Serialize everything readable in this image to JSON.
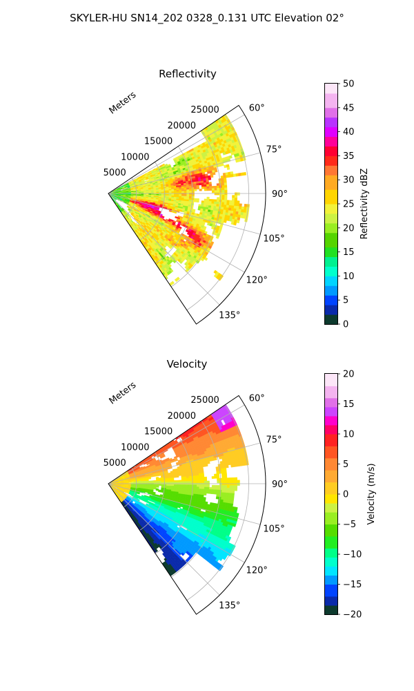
{
  "figure": {
    "title": "SKYLER-HU  SN14_202  0328_0.131 UTC Elevation 02°"
  },
  "chart_data": [
    {
      "type": "heatmap",
      "title": "Reflectivity",
      "projection": "polar-sector",
      "range_label": "Meters",
      "range_ticks": [
        "5000",
        "10000",
        "15000",
        "20000",
        "25000"
      ],
      "range_values": [
        5000,
        10000,
        15000,
        20000,
        25000
      ],
      "rmax": 28000,
      "azimuth_ticks": [
        "60°",
        "75°",
        "90°",
        "105°",
        "120°",
        "135°"
      ],
      "azimuth_values": [
        60,
        75,
        90,
        105,
        120,
        135
      ],
      "theta_range": [
        56,
        146
      ],
      "grid": true,
      "colorbar": {
        "label": "Reflectivity dBZ",
        "vmin": 0,
        "vmax": 50,
        "ticks": [
          "0",
          "5",
          "10",
          "15",
          "20",
          "25",
          "30",
          "35",
          "40",
          "45",
          "50"
        ],
        "stops": [
          [
            0,
            "#0b1a6e"
          ],
          [
            2,
            "#0d3a2e"
          ],
          [
            4,
            "#0a2aaa"
          ],
          [
            6,
            "#0044ff"
          ],
          [
            8,
            "#0099ff"
          ],
          [
            10,
            "#00d4ff"
          ],
          [
            12,
            "#00ffcc"
          ],
          [
            14,
            "#00f090"
          ],
          [
            16,
            "#22e022"
          ],
          [
            19,
            "#55d400"
          ],
          [
            21,
            "#99ee22"
          ],
          [
            23,
            "#ccf244"
          ],
          [
            25,
            "#f2f23a"
          ],
          [
            28,
            "#ffd500"
          ],
          [
            31,
            "#ffaa22"
          ],
          [
            33,
            "#ff7733"
          ],
          [
            35,
            "#ff2a1a"
          ],
          [
            37,
            "#ff0033"
          ],
          [
            39,
            "#ff0099"
          ],
          [
            41,
            "#e000ff"
          ],
          [
            43,
            "#b833ff"
          ],
          [
            45,
            "#e070e8"
          ],
          [
            48,
            "#f4b4f0"
          ],
          [
            50,
            "#fce6f8"
          ]
        ]
      }
    },
    {
      "type": "heatmap",
      "title": "Velocity",
      "projection": "polar-sector",
      "range_label": "Meters",
      "range_ticks": [
        "5000",
        "10000",
        "15000",
        "20000",
        "25000"
      ],
      "range_values": [
        5000,
        10000,
        15000,
        20000,
        25000
      ],
      "rmax": 28000,
      "azimuth_ticks": [
        "60°",
        "75°",
        "90°",
        "105°",
        "120°",
        "135°"
      ],
      "azimuth_values": [
        60,
        75,
        90,
        105,
        120,
        135
      ],
      "theta_range": [
        56,
        146
      ],
      "grid": true,
      "colorbar": {
        "label": "Velocity (m/s)",
        "vmin": -20,
        "vmax": 20,
        "ticks": [
          "−20",
          "−15",
          "−10",
          "−5",
          "0",
          "5",
          "10",
          "15",
          "20"
        ],
        "stops": [
          [
            -20,
            "#0b1a6e"
          ],
          [
            -18.5,
            "#0d3a2e"
          ],
          [
            -17,
            "#0a2aaa"
          ],
          [
            -15,
            "#0044ff"
          ],
          [
            -13.5,
            "#0099ff"
          ],
          [
            -12,
            "#00e5ff"
          ],
          [
            -10.5,
            "#00ffcc"
          ],
          [
            -9,
            "#00ff88"
          ],
          [
            -7,
            "#22ee22"
          ],
          [
            -5,
            "#55dd00"
          ],
          [
            -3,
            "#99ee22"
          ],
          [
            -1.5,
            "#ccf244"
          ],
          [
            0,
            "#ffe600"
          ],
          [
            2,
            "#ffcc22"
          ],
          [
            4,
            "#ffaa33"
          ],
          [
            6,
            "#ff8833"
          ],
          [
            8,
            "#ff5522"
          ],
          [
            10,
            "#ff2222"
          ],
          [
            11.5,
            "#ff0066"
          ],
          [
            13,
            "#ff00cc"
          ],
          [
            14.5,
            "#cc44ff"
          ],
          [
            16,
            "#e070e8"
          ],
          [
            18,
            "#f4b4f0"
          ],
          [
            20,
            "#fce6f8"
          ]
        ]
      }
    }
  ]
}
